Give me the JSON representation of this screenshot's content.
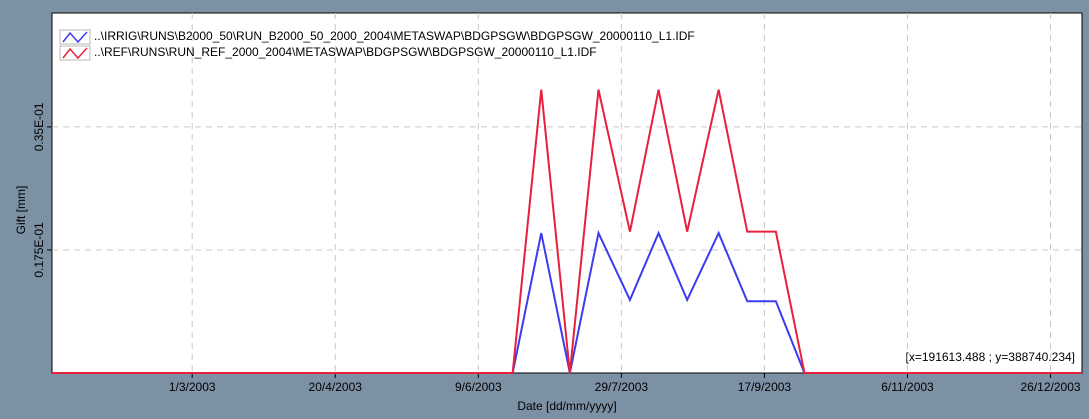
{
  "chart_data": {
    "type": "line",
    "x_label": "Date [dd/mm/yyyy]",
    "y_label": "Gift [mm]",
    "annotation": "[x=191613.488 ; y=388740.234]",
    "x": [
      "2003-01-11",
      "2003-06-21",
      "2003-07-01",
      "2003-07-11",
      "2003-07-21",
      "2003-08-01",
      "2003-08-11",
      "2003-08-21",
      "2003-09-01",
      "2003-09-11",
      "2003-09-21",
      "2003-10-01",
      "2004-01-06"
    ],
    "series": [
      {
        "name": "..\\IRRIG\\RUNS\\B2000_50\\RUN_B2000_50_2000_2004\\METASWAP\\BDGPSGW\\BDGPSGW_20000110_L1.IDF",
        "color": "#3c3cf0",
        "values": [
          0,
          0,
          0.0199,
          0,
          0.0199,
          0.0104,
          0.0199,
          0.0104,
          0.0199,
          0.0102,
          0.0102,
          0,
          0
        ]
      },
      {
        "name": "..\\REF\\RUNS\\RUN_REF_2000_2004\\METASWAP\\BDGPSGW\\BDGPSGW_20000110_L1.IDF",
        "color": "#e8203c",
        "values": [
          0,
          0,
          0.0403,
          0,
          0.0403,
          0.0201,
          0.0403,
          0.0201,
          0.0403,
          0.0201,
          0.0201,
          0,
          0
        ]
      }
    ],
    "xlim": [
      "2003-01-11",
      "2004-01-06"
    ],
    "xticks": [
      {
        "value": "2003-03-01",
        "label": "1/3/2003"
      },
      {
        "value": "2003-04-20",
        "label": "20/4/2003"
      },
      {
        "value": "2003-06-09",
        "label": "9/6/2003"
      },
      {
        "value": "2003-07-29",
        "label": "29/7/2003"
      },
      {
        "value": "2003-09-17",
        "label": "17/9/2003"
      },
      {
        "value": "2003-11-06",
        "label": "6/11/2003"
      },
      {
        "value": "2003-12-26",
        "label": "26/12/2003"
      }
    ],
    "ylim": [
      0,
      0.0512
    ],
    "yticks": [
      {
        "value": 0.0175,
        "label": "0.175E-01"
      },
      {
        "value": 0.035,
        "label": "0.35E-01"
      }
    ],
    "grid": true,
    "legend": "top-left"
  }
}
